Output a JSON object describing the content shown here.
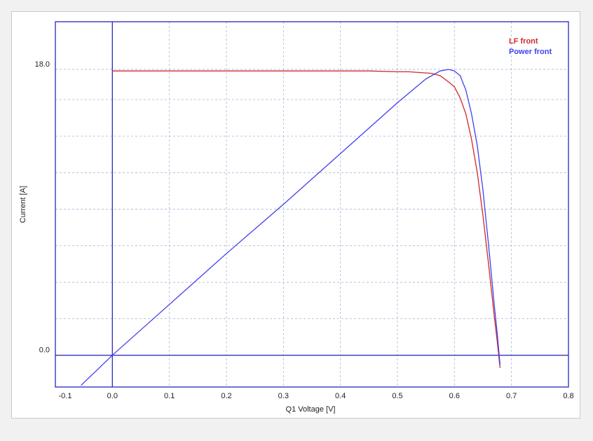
{
  "chart_data": {
    "type": "line",
    "title": "",
    "xlabel": "Q1 Voltage [V]",
    "ylabel": "Current [A]",
    "xlim": [
      -0.1,
      0.8
    ],
    "ylim": [
      -2.0,
      21.0
    ],
    "x_ticks": [
      -0.1,
      0.0,
      0.1,
      0.2,
      0.3,
      0.4,
      0.5,
      0.6,
      0.7,
      0.8
    ],
    "x_tick_labels": [
      "-0.1",
      "0.0",
      "0.1",
      "0.2",
      "0.3",
      "0.4",
      "0.5",
      "0.6",
      "0.7",
      "0.8"
    ],
    "y_ticks": [
      0.0,
      18.0
    ],
    "y_tick_labels": [
      "0.0",
      "18.0"
    ],
    "x_gridlines": [
      -0.1,
      0.0,
      0.1,
      0.2,
      0.3,
      0.4,
      0.5,
      0.6,
      0.7,
      0.8
    ],
    "y_gridlines": [
      -2.0,
      0.0,
      2.3,
      4.6,
      6.9,
      9.2,
      11.5,
      13.8,
      16.1,
      18.0
    ],
    "grid": true,
    "reference_lines": {
      "x": 0.0,
      "y": 0.0,
      "color": "#3535c0"
    },
    "legend": {
      "position": "top-right"
    },
    "series": [
      {
        "name": "LF front",
        "color": "#d02828",
        "x": [
          0.0,
          0.1,
          0.2,
          0.3,
          0.4,
          0.45,
          0.5,
          0.52,
          0.54,
          0.56,
          0.575,
          0.59,
          0.6,
          0.61,
          0.62,
          0.63,
          0.64,
          0.65,
          0.66,
          0.67,
          0.675,
          0.68
        ],
        "y": [
          17.9,
          17.9,
          17.9,
          17.9,
          17.9,
          17.9,
          17.85,
          17.85,
          17.8,
          17.75,
          17.6,
          17.2,
          16.9,
          16.2,
          15.2,
          13.6,
          11.5,
          8.8,
          5.7,
          2.4,
          0.9,
          -0.8
        ]
      },
      {
        "name": "Power front",
        "color": "#4040ee",
        "x": [
          -0.055,
          0.0,
          0.1,
          0.2,
          0.3,
          0.4,
          0.5,
          0.55,
          0.575,
          0.59,
          0.6,
          0.61,
          0.62,
          0.63,
          0.64,
          0.65,
          0.66,
          0.67,
          0.675,
          0.68
        ],
        "y": [
          -1.9,
          0.0,
          3.2,
          6.4,
          9.5,
          12.7,
          15.9,
          17.4,
          17.9,
          18.0,
          17.9,
          17.6,
          16.7,
          15.2,
          13.2,
          10.4,
          6.9,
          3.1,
          1.4,
          -0.6
        ]
      }
    ]
  }
}
